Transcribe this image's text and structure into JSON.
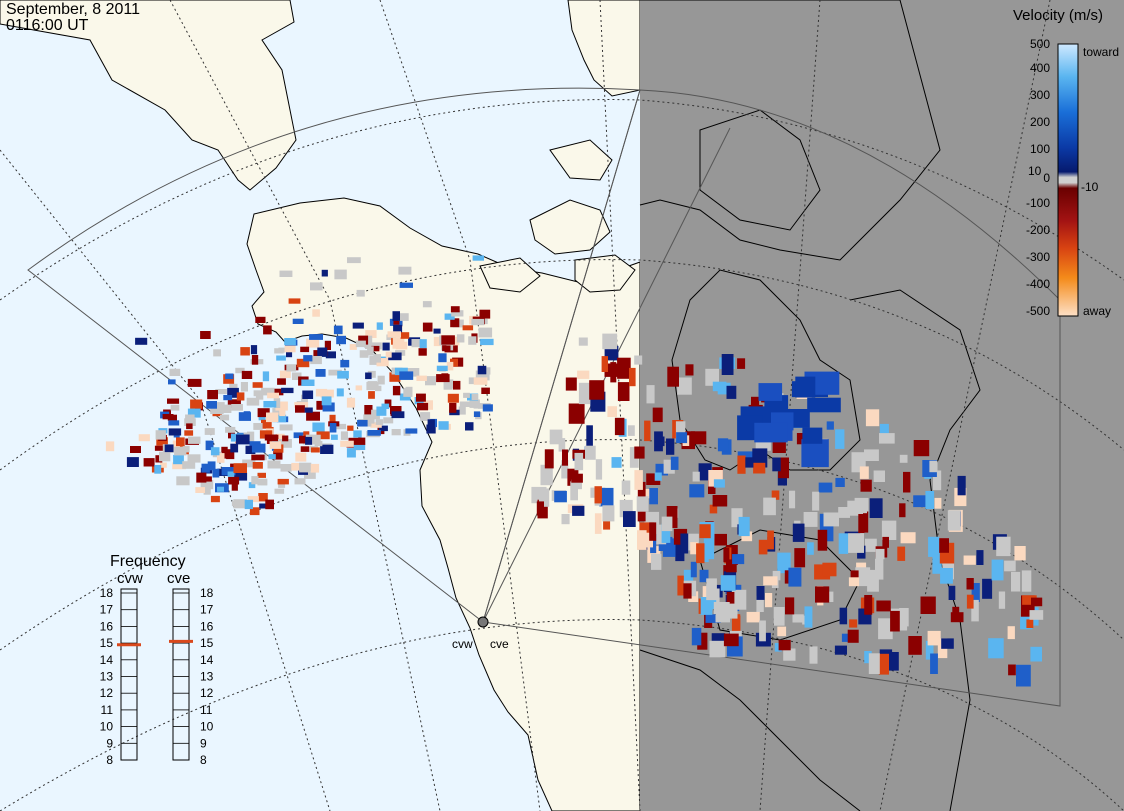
{
  "header": {
    "date": "September, 8 2011",
    "time": "0116:00 UT"
  },
  "colors": {
    "ocean": "#eaf6ff",
    "land_day": "#faf8ea",
    "night": "#979797",
    "coast": "#000000",
    "fov": "#555555",
    "grid": "#333333",
    "ground_scatter": "#c8c8c8",
    "accent_freq": "#d9481c"
  },
  "velocity_scale": {
    "title": "Velocity (m/s)",
    "ticks": [
      "500",
      "400",
      "300",
      "200",
      "100",
      "10",
      "0",
      "-10",
      "-100",
      "-200",
      "-300",
      "-400",
      "-500"
    ],
    "toward_label": "toward",
    "away_label": "away"
  },
  "frequency": {
    "title": "Frequency",
    "radars": [
      {
        "code": "cvw",
        "value": 14.9
      },
      {
        "code": "cve",
        "value": 15.1
      }
    ],
    "ticks": [
      "18",
      "17",
      "16",
      "15",
      "14",
      "13",
      "12",
      "11",
      "10",
      "9",
      "8"
    ]
  },
  "radar_sites": [
    {
      "code": "cvw"
    },
    {
      "code": "cve"
    }
  ]
}
